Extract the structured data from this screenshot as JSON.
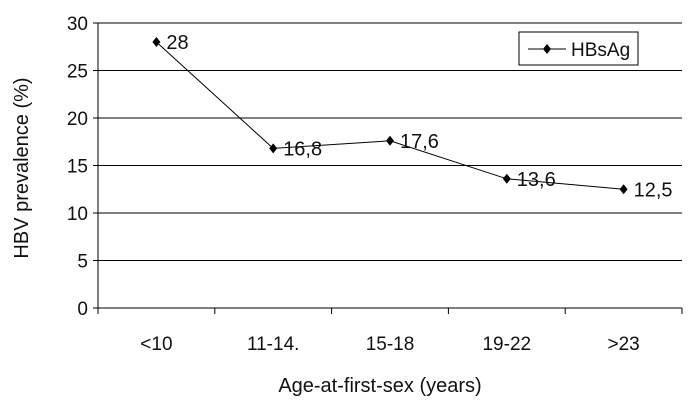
{
  "chart_data": {
    "type": "line",
    "categories": [
      "<10",
      "11-14.",
      "15-18",
      "19-22",
      ">23"
    ],
    "series": [
      {
        "name": "HBsAg",
        "values": [
          28,
          16.8,
          17.6,
          13.6,
          12.5
        ],
        "labels": [
          "28",
          "16,8",
          "17,6",
          "13,6",
          "12,5"
        ]
      }
    ],
    "xlabel": "Age-at-first-sex (years)",
    "ylabel": "HBV prevalence (%)",
    "ylim": [
      0,
      30
    ],
    "yticks": [
      "0",
      "5",
      "10",
      "15",
      "20",
      "25",
      "30"
    ],
    "grid": true,
    "legend_position": "top-right",
    "colors": {
      "line": "#000000",
      "grid": "#000000"
    }
  }
}
